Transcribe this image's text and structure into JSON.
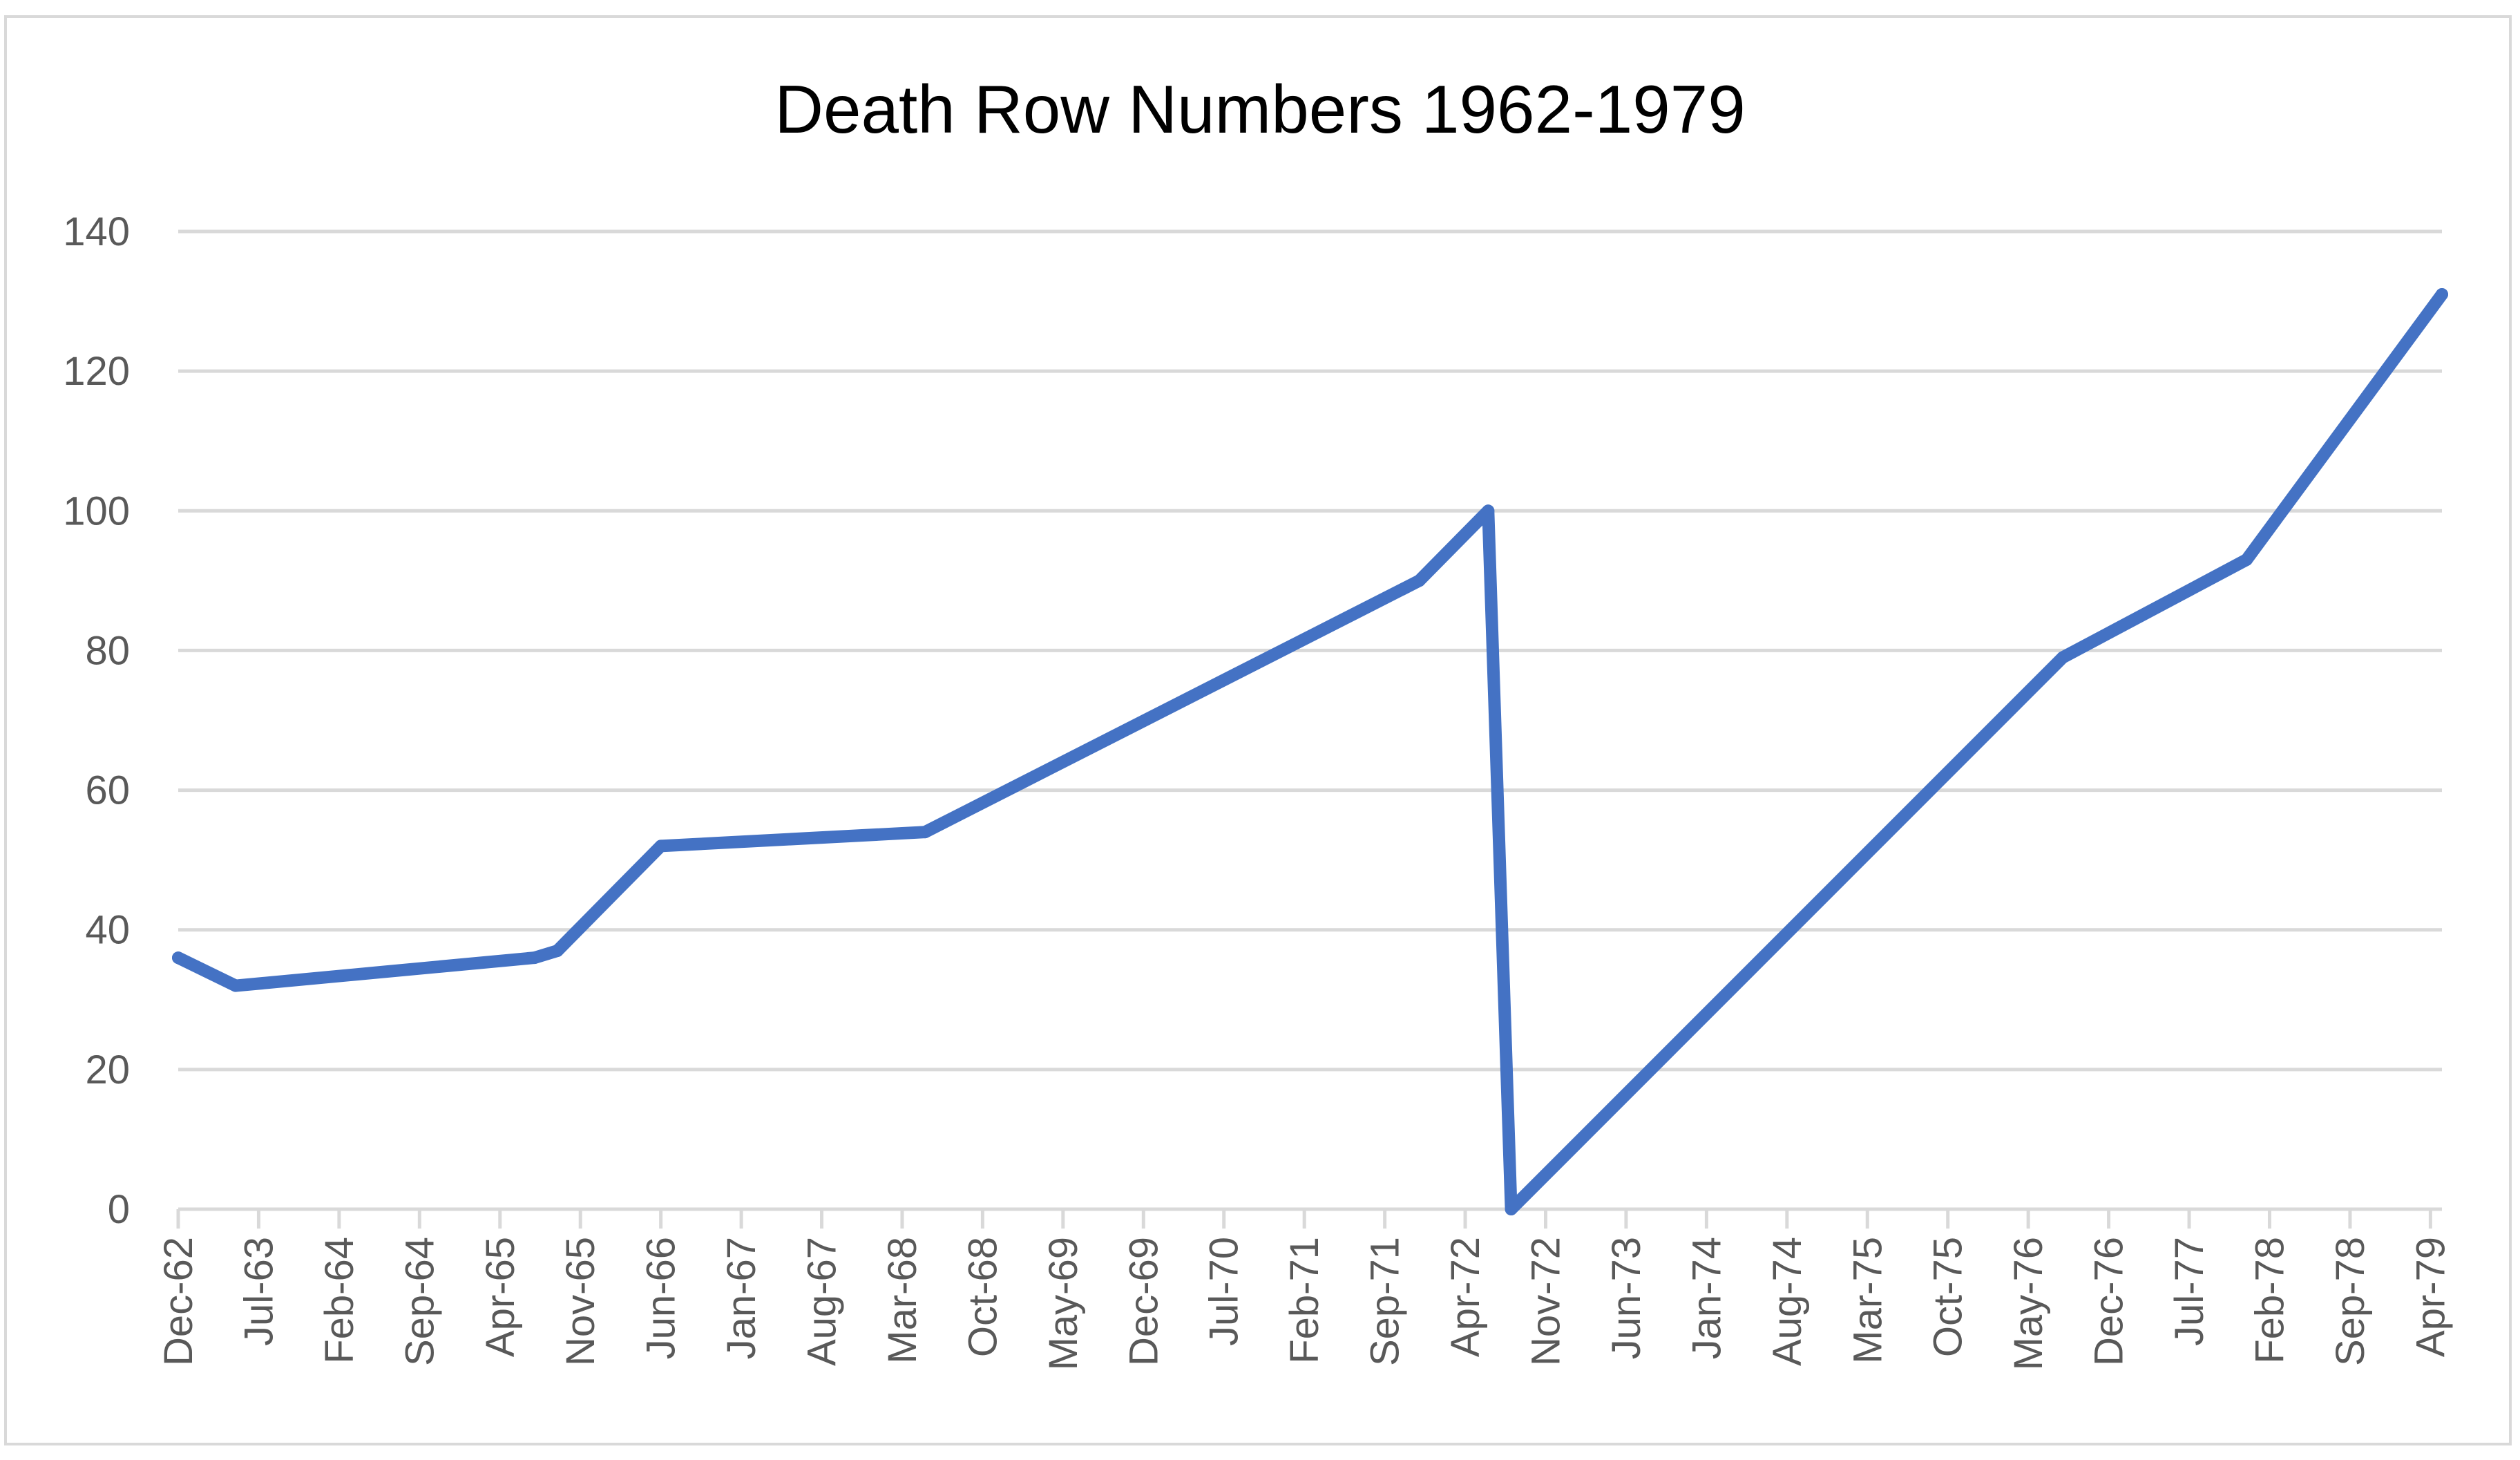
{
  "chart_data": {
    "type": "line",
    "title": "Death Row Numbers 1962-1979",
    "xlabel": "",
    "ylabel": "",
    "ylim": [
      0,
      140
    ],
    "yticks": [
      0,
      20,
      40,
      60,
      80,
      100,
      120,
      140
    ],
    "grid": true,
    "legend": "none",
    "line_color": "#4472c4",
    "categories": [
      "Dec-62",
      "Jul-63",
      "Feb-64",
      "Sep-64",
      "Apr-65",
      "Nov-65",
      "Jun-66",
      "Jan-67",
      "Aug-67",
      "Mar-68",
      "Oct-68",
      "May-69",
      "Dec-69",
      "Jul-70",
      "Feb-71",
      "Sep-71",
      "Apr-72",
      "Nov-72",
      "Jun-73",
      "Jan-74",
      "Aug-74",
      "Mar-75",
      "Oct-75",
      "May-76",
      "Dec-76",
      "Jul-77",
      "Feb-78",
      "Sep-78",
      "Apr-79"
    ],
    "series": [
      {
        "points": [
          {
            "x": "1962-12",
            "y": 36
          },
          {
            "x": "1963-05",
            "y": 32
          },
          {
            "x": "1965-07",
            "y": 36
          },
          {
            "x": "1965-09",
            "y": 37
          },
          {
            "x": "1966-06",
            "y": 52
          },
          {
            "x": "1968-05",
            "y": 54
          },
          {
            "x": "1971-12",
            "y": 90
          },
          {
            "x": "1972-06",
            "y": 100
          },
          {
            "x": "1972-08",
            "y": 0
          },
          {
            "x": "1976-08",
            "y": 79
          },
          {
            "x": "1977-12",
            "y": 93
          },
          {
            "x": "1979-05",
            "y": 131
          }
        ]
      }
    ]
  }
}
